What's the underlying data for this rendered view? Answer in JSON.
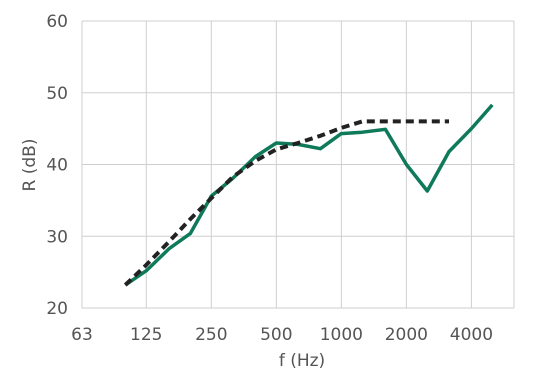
{
  "chart_data": {
    "type": "line",
    "xscale": "log2",
    "xlabel": "f (Hz)",
    "ylabel": "R (dB)",
    "xticks": [
      63,
      125,
      250,
      500,
      1000,
      2000,
      4000
    ],
    "xtick_labels": [
      "63",
      "125",
      "250",
      "500",
      "1000",
      "2000",
      "4000"
    ],
    "yticks": [
      20,
      30,
      40,
      50,
      60
    ],
    "ytick_labels": [
      "20",
      "30",
      "40",
      "50",
      "60"
    ],
    "xlim": [
      63,
      6300
    ],
    "ylim": [
      20,
      60
    ],
    "grid": true,
    "legend": "none",
    "series": [
      {
        "color": "#0f7a5a",
        "style": "solid",
        "x": [
          100,
          125,
          160,
          200,
          250,
          315,
          400,
          500,
          630,
          800,
          1000,
          1250,
          1600,
          2000,
          2500,
          3150,
          4000,
          5000
        ],
        "y": [
          23.2,
          25.2,
          28.3,
          30.4,
          35.6,
          38.1,
          41.1,
          43.0,
          42.8,
          42.2,
          44.3,
          44.5,
          44.9,
          40.0,
          36.3,
          41.8,
          45.0,
          48.3
        ]
      },
      {
        "color": "#222222",
        "style": "dashed",
        "x": [
          100,
          125,
          160,
          200,
          250,
          315,
          400,
          500,
          630,
          800,
          1000,
          1250,
          1600,
          2000,
          2500,
          3150
        ],
        "y": [
          23.2,
          26.0,
          29.3,
          32.4,
          35.3,
          38.3,
          40.5,
          42.1,
          43.0,
          44.0,
          45.1,
          46.0,
          46.0,
          46.0,
          46.0,
          46.0
        ]
      }
    ]
  }
}
